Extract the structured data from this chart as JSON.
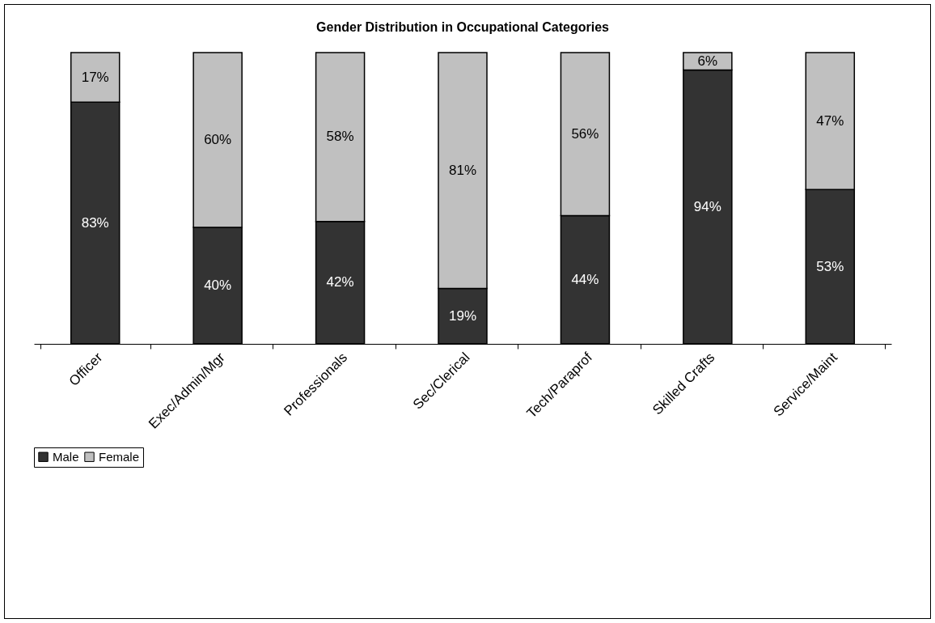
{
  "chart_data": {
    "type": "bar",
    "title": "Gender Distribution in Occupational Categories",
    "categories": [
      "Officer",
      "Exec/Admin/Mgr",
      "Professionals",
      "Sec/Clerical",
      "Tech/Paraprof",
      "Skilled Crafts",
      "Service/Maint"
    ],
    "stacked": true,
    "legend": "bottom",
    "grid": false,
    "tick_labels": "x",
    "series": [
      {
        "name": "Male",
        "color": "#333333",
        "values": [
          83,
          40,
          42,
          19,
          44,
          94,
          53
        ],
        "value_labels": [
          "83%",
          "40%",
          "42%",
          "19%",
          "44%",
          "94%",
          "53%"
        ]
      },
      {
        "name": "Female",
        "color": "#c0c0c0",
        "values": [
          17,
          60,
          58,
          81,
          56,
          6,
          47
        ],
        "value_labels": [
          "17%",
          "60%",
          "58%",
          "81%",
          "56%",
          "6%",
          "47%"
        ]
      }
    ]
  }
}
